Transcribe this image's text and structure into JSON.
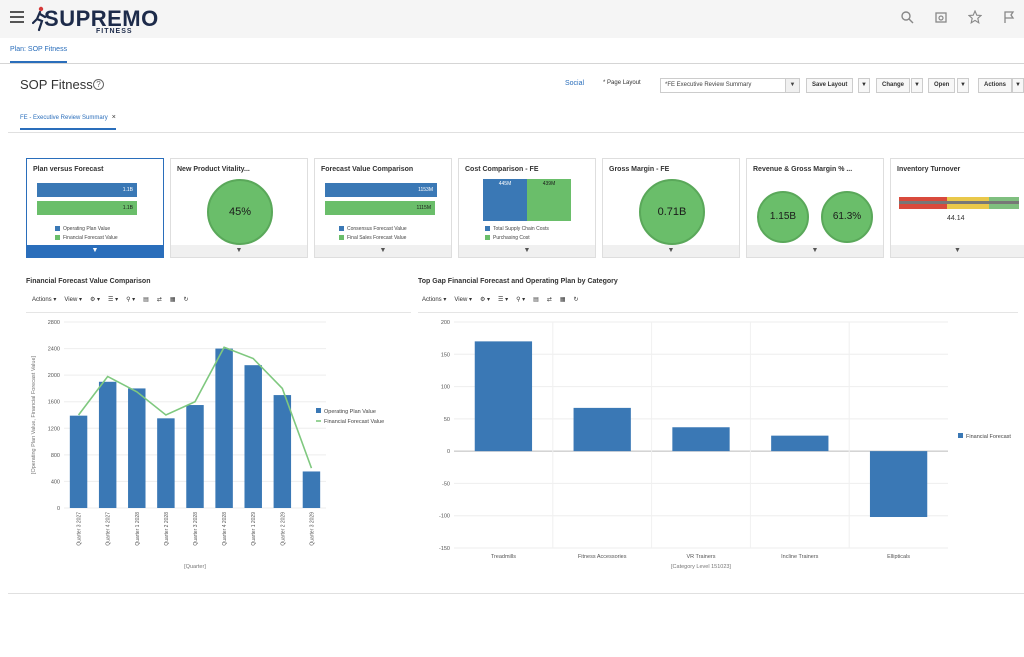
{
  "app": {
    "brand": "UPREMO",
    "brand_prefix": "S",
    "brand_sub": "FITNESS"
  },
  "tabs": {
    "main": "Plan: SOP Fitness"
  },
  "page": {
    "title": "SOP Fitness",
    "help": "?"
  },
  "toolbar": {
    "social": "Social",
    "page_layout_label": "Page Layout",
    "page_layout_value": "*FE Executive Review Summary",
    "save_layout": "Save Layout",
    "change": "Change",
    "open": "Open",
    "actions": "Actions"
  },
  "subtab": {
    "label": "FE - Executive Review Summary",
    "close": "×"
  },
  "cards": [
    {
      "title": "Plan versus Forecast",
      "bars": [
        {
          "label": "1.1B",
          "color": "#3a78b5",
          "fraction": 0.82
        },
        {
          "label": "1.1B",
          "color": "#6abe6a",
          "fraction": 0.82
        }
      ],
      "legend": [
        "Operating Plan Value",
        "Financial Forecast Value"
      ]
    },
    {
      "title": "New Product Vitality...",
      "value": "45%"
    },
    {
      "title": "Forecast Value Comparison",
      "bars": [
        {
          "label": "1153M",
          "color": "#3a78b5",
          "fraction": 0.92
        },
        {
          "label": "1115M",
          "color": "#6abe6a",
          "fraction": 0.9
        }
      ],
      "legend": [
        "Consensus Forecast Value",
        "Final Sales Forecast Value"
      ]
    },
    {
      "title": "Cost Comparison - FE",
      "stacks": [
        {
          "label": "445M",
          "color": "#3a78b5"
        },
        {
          "label": "439M",
          "color": "#6abe6a"
        }
      ],
      "legend": [
        "Total Supply Chain Costs",
        "Purchasing Cost"
      ]
    },
    {
      "title": "Gross Margin - FE",
      "value": "0.71B"
    },
    {
      "title": "Revenue & Gross Margin % ...",
      "values": [
        "1.15B",
        "61.3%"
      ]
    },
    {
      "title": "Inventory Turnover",
      "value": "44.14"
    }
  ],
  "chart_left": {
    "title": "Financial Forecast Value Comparison",
    "tools": {
      "actions": "Actions",
      "view": "View"
    }
  },
  "chart_right": {
    "title": "Top Gap Financial Forecast and Operating Plan by Category",
    "tools": {
      "actions": "Actions",
      "view": "View"
    }
  },
  "chart_data": [
    {
      "type": "bar",
      "categories": [
        "Quarter 3 2027",
        "Quarter 4 2027",
        "Quarter 1 2028",
        "Quarter 2 2028",
        "Quarter 3 2028",
        "Quarter 4 2028",
        "Quarter 1 2029",
        "Quarter 2 2029",
        "Quarter 3 2029"
      ],
      "series": [
        {
          "name": "Operating Plan Value",
          "type": "bar",
          "color": "#3a78b5",
          "values": [
            1390,
            1900,
            1800,
            1350,
            1550,
            2400,
            2150,
            1700,
            550
          ]
        },
        {
          "name": "Financial Forecast Value",
          "type": "line",
          "color": "#7fc87f",
          "values": [
            1400,
            1980,
            1750,
            1400,
            1600,
            2420,
            2250,
            1800,
            600
          ]
        }
      ],
      "xlabel": "[Quarter]",
      "ylabel": "[Operating Plan Value, Financial Forecast Value]",
      "yticks": [
        "0",
        "400",
        "800",
        "1200",
        "1600",
        "2000",
        "2400",
        "2800"
      ],
      "ylim": [
        0,
        2800
      ],
      "legend": "right"
    },
    {
      "type": "bar",
      "categories": [
        "Treadmills",
        "Fitness Accessories",
        "VR Trainers",
        "Incline Trainers",
        "Ellipticals"
      ],
      "series": [
        {
          "name": "Financial Forecast",
          "color": "#3a78b5",
          "values": [
            170,
            67,
            37,
            24,
            -102
          ]
        }
      ],
      "xlabel": "[Category Level 151023]",
      "ylabel": "",
      "yticks": [
        "-150",
        "-100",
        "-50",
        "0",
        "50",
        "100",
        "150",
        "200"
      ],
      "ylim": [
        -150,
        200
      ],
      "legend": "right"
    }
  ]
}
